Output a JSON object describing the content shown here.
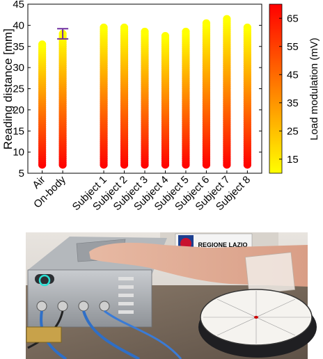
{
  "chart_data": {
    "type": "scatter",
    "ylabel": "Reading distance [mm]",
    "colorbar_label": "Load modulation (mV)",
    "ylim": [
      5,
      45
    ],
    "yticks": [
      5,
      10,
      15,
      20,
      25,
      30,
      35,
      40,
      45
    ],
    "colorbar_ticks": [
      15,
      25,
      35,
      45,
      55,
      65
    ],
    "colorbar_range": [
      10,
      70
    ],
    "colormap": [
      "#ffff00",
      "#ff0000"
    ],
    "errorbar_color": "#7030a0",
    "grid": false,
    "categories": [
      "Air",
      "On-body",
      "Subject 1",
      "Subject 2",
      "Subject 3",
      "Subject 4",
      "Subject 5",
      "Subject 6",
      "Subject 7",
      "Subject 8"
    ],
    "x_positions": [
      1,
      2,
      4,
      5,
      6,
      7,
      8,
      9,
      10,
      11
    ],
    "series": [
      {
        "category": "Air",
        "y_min": 7,
        "y_max": 35.5
      },
      {
        "category": "On-body",
        "y_min": 7,
        "y_max": 38,
        "error_bar": [
          36.8,
          39.2
        ]
      },
      {
        "category": "Subject 1",
        "y_min": 7,
        "y_max": 39.5
      },
      {
        "category": "Subject 2",
        "y_min": 7,
        "y_max": 39.5
      },
      {
        "category": "Subject 3",
        "y_min": 7,
        "y_max": 38.5
      },
      {
        "category": "Subject 4",
        "y_min": 7,
        "y_max": 37.5
      },
      {
        "category": "Subject 5",
        "y_min": 7,
        "y_max": 38.5
      },
      {
        "category": "Subject 6",
        "y_min": 7,
        "y_max": 40.5
      },
      {
        "category": "Subject 7",
        "y_min": 7,
        "y_max": 41.5
      },
      {
        "category": "Subject 8",
        "y_min": 7,
        "y_max": 39.5
      }
    ]
  },
  "photo": {
    "sign_text": "REGIONE LAZIO"
  }
}
